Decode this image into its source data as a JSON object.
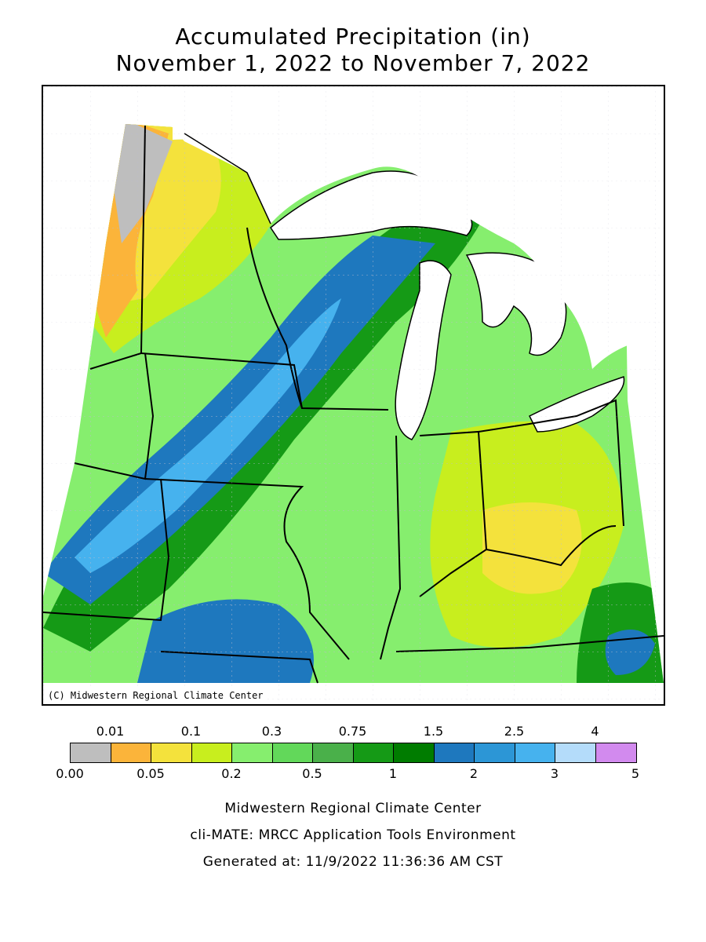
{
  "title": {
    "line1": "Accumulated Precipitation (in)",
    "line2": "November 1, 2022 to November 7, 2022"
  },
  "map": {
    "copyright": "(C) Midwestern Regional Climate Center"
  },
  "legend": {
    "top_labels": [
      "0.01",
      "0.1",
      "0.3",
      "0.75",
      "1.5",
      "2.5",
      "4"
    ],
    "bottom_labels": [
      "0.00",
      "0.05",
      "0.2",
      "0.5",
      "1",
      "2",
      "3",
      "5"
    ],
    "colors": [
      "#bebebe",
      "#fbb43a",
      "#f4e23c",
      "#c8ee1e",
      "#86ee6e",
      "#62d85a",
      "#4ab04a",
      "#159a16",
      "#007c00",
      "#1e78be",
      "#2c96d6",
      "#46b2ee",
      "#b4dcfa",
      "#d28aee"
    ]
  },
  "footer": {
    "line1": "Midwestern Regional Climate Center",
    "line2": "cli-MATE: MRCC Application Tools Environment",
    "line3": "Generated at: 11/9/2022 11:36:36 AM CST"
  }
}
